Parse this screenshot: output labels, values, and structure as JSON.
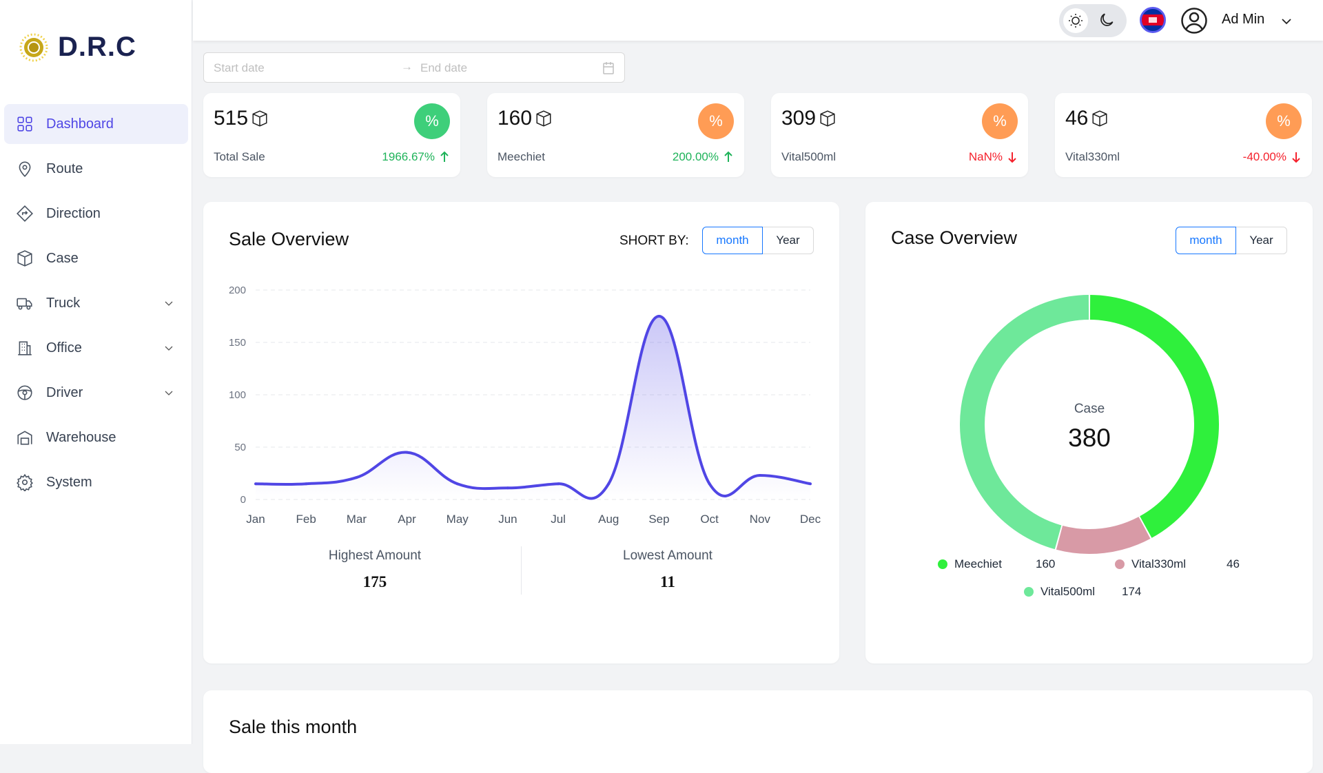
{
  "brand": {
    "name": "D.R.C"
  },
  "sidebar": {
    "items": [
      {
        "label": "Dashboard",
        "icon": "dashboard-icon",
        "active": true
      },
      {
        "label": "Route",
        "icon": "location-pin-icon"
      },
      {
        "label": "Direction",
        "icon": "direction-sign-icon"
      },
      {
        "label": "Case",
        "icon": "box-icon"
      },
      {
        "label": "Truck",
        "icon": "truck-icon",
        "expandable": true
      },
      {
        "label": "Office",
        "icon": "building-icon",
        "expandable": true
      },
      {
        "label": "Driver",
        "icon": "steering-wheel-icon",
        "expandable": true
      },
      {
        "label": "Warehouse",
        "icon": "warehouse-icon"
      },
      {
        "label": "System",
        "icon": "gear-icon"
      }
    ]
  },
  "header": {
    "user": "Ad Min",
    "language": "Khmer"
  },
  "date_range": {
    "start_placeholder": "Start date",
    "end_placeholder": "End date"
  },
  "stats": [
    {
      "value": "515",
      "label": "Total Sale",
      "change": "1966.67%",
      "trend": "up",
      "badge_color": "#3ecf7a"
    },
    {
      "value": "160",
      "label": "Meechiet",
      "change": "200.00%",
      "trend": "up",
      "badge_color": "#ff9c55"
    },
    {
      "value": "309",
      "label": "Vital500ml",
      "change": "NaN%",
      "trend": "down",
      "badge_color": "#ff9c55"
    },
    {
      "value": "46",
      "label": "Vital330ml",
      "change": "-40.00%",
      "trend": "down",
      "badge_color": "#ff9c55"
    }
  ],
  "sale_overview": {
    "title": "Sale Overview",
    "sort_label": "SHORT BY:",
    "tabs": [
      "month",
      "Year"
    ],
    "selected": "month",
    "highest_label": "Highest Amount",
    "highest": "175",
    "lowest_label": "Lowest Amount",
    "lowest": "11"
  },
  "case_overview": {
    "title": "Case Overview",
    "tabs": [
      "month",
      "Year"
    ],
    "selected": "month",
    "center_label": "Case",
    "total": "380"
  },
  "sale_this_month": {
    "title": "Sale this month"
  },
  "chart_data": [
    {
      "type": "area",
      "categories": [
        "Jan",
        "Feb",
        "Mar",
        "Apr",
        "May",
        "Jun",
        "Jul",
        "Aug",
        "Sep",
        "Oct",
        "Nov",
        "Dec"
      ],
      "values": [
        15,
        15,
        21,
        45,
        15,
        11,
        15,
        15,
        175,
        15,
        23,
        15
      ],
      "ylim": [
        0,
        200
      ],
      "yticks": [
        0,
        50,
        100,
        150,
        200
      ],
      "grid": true,
      "color": "#5046e5"
    },
    {
      "type": "pie",
      "donut": true,
      "slices": [
        {
          "name": "Meechiet",
          "value": 160,
          "color": "#2ff03c"
        },
        {
          "name": "Vital330ml",
          "value": 46,
          "color": "#d89aa6"
        },
        {
          "name": "Vital500ml",
          "value": 174,
          "color": "#6ee89a"
        }
      ],
      "legend": "bottom"
    }
  ]
}
